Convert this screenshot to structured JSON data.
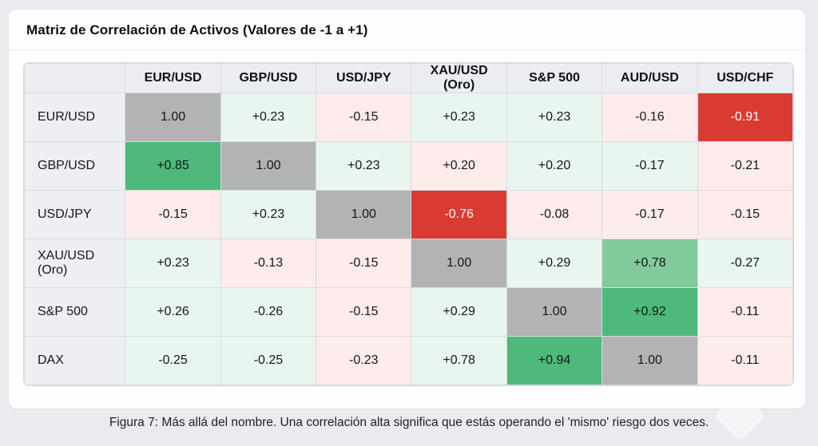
{
  "header": {
    "title": "Matriz de Correlación de Activos (Valores de -1 a +1)"
  },
  "caption": "Figura 7: Más allá del nombre. Una correlación alta significa que estás operando el 'mismo' riesgo dos veces.",
  "chart_data": {
    "type": "heatmap",
    "title": "Matriz de Correlación de Activos (Valores de -1 a +1)",
    "value_range": [
      -1,
      1
    ],
    "columns": [
      "EUR/USD",
      "GBP/USD",
      "USD/JPY",
      "XAU/USD (Oro)",
      "S&P 500",
      "AUD/USD",
      "USD/CHF"
    ],
    "rows": [
      "EUR/USD",
      "GBP/USD",
      "USD/JPY",
      "XAU/USD (Oro)",
      "S&P 500",
      "DAX"
    ],
    "values": [
      [
        "1.00",
        "+0.23",
        "-0.15",
        "+0.23",
        "+0.23",
        "-0.16",
        "-0.91"
      ],
      [
        "+0.85",
        "1.00",
        "+0.23",
        "+0.20",
        "+0.20",
        "-0.17",
        "-0.21"
      ],
      [
        "-0.15",
        "+0.23",
        "1.00",
        "-0.76",
        "-0.08",
        "-0.17",
        "-0.15"
      ],
      [
        "+0.23",
        "-0.13",
        "-0.15",
        "1.00",
        "+0.29",
        "+0.78",
        "-0.27"
      ],
      [
        "+0.26",
        "-0.26",
        "-0.15",
        "+0.29",
        "1.00",
        "+0.92",
        "-0.11"
      ],
      [
        "-0.25",
        "-0.25",
        "-0.23",
        "+0.78",
        "+0.94",
        "1.00",
        "-0.11"
      ]
    ],
    "tones": [
      [
        "gray",
        "green_light",
        "red_light",
        "green_light",
        "green_light",
        "red_light",
        "red_strong"
      ],
      [
        "green_strong",
        "gray",
        "green_light",
        "red_light",
        "green_light",
        "green_light",
        "red_light"
      ],
      [
        "red_light",
        "green_light",
        "gray",
        "red_strong",
        "red_light",
        "red_light",
        "red_light"
      ],
      [
        "green_light",
        "red_light",
        "red_light",
        "gray",
        "green_light",
        "green_medium",
        "green_light"
      ],
      [
        "green_light",
        "green_light",
        "red_light",
        "green_light",
        "gray",
        "green_strong",
        "red_light"
      ],
      [
        "green_light",
        "green_light",
        "red_light",
        "green_light",
        "green_strong",
        "gray",
        "red_light"
      ]
    ]
  },
  "colors": {
    "gray": "#b2b3b5",
    "green_strong": "#4eb97a",
    "green_medium": "#81ca9c",
    "green_light": "#e9f6ef",
    "red_light": "#fdeceb",
    "red_strong": "#d93b33",
    "red_strong_text": "#ffffff",
    "default_text": "#15161a"
  }
}
